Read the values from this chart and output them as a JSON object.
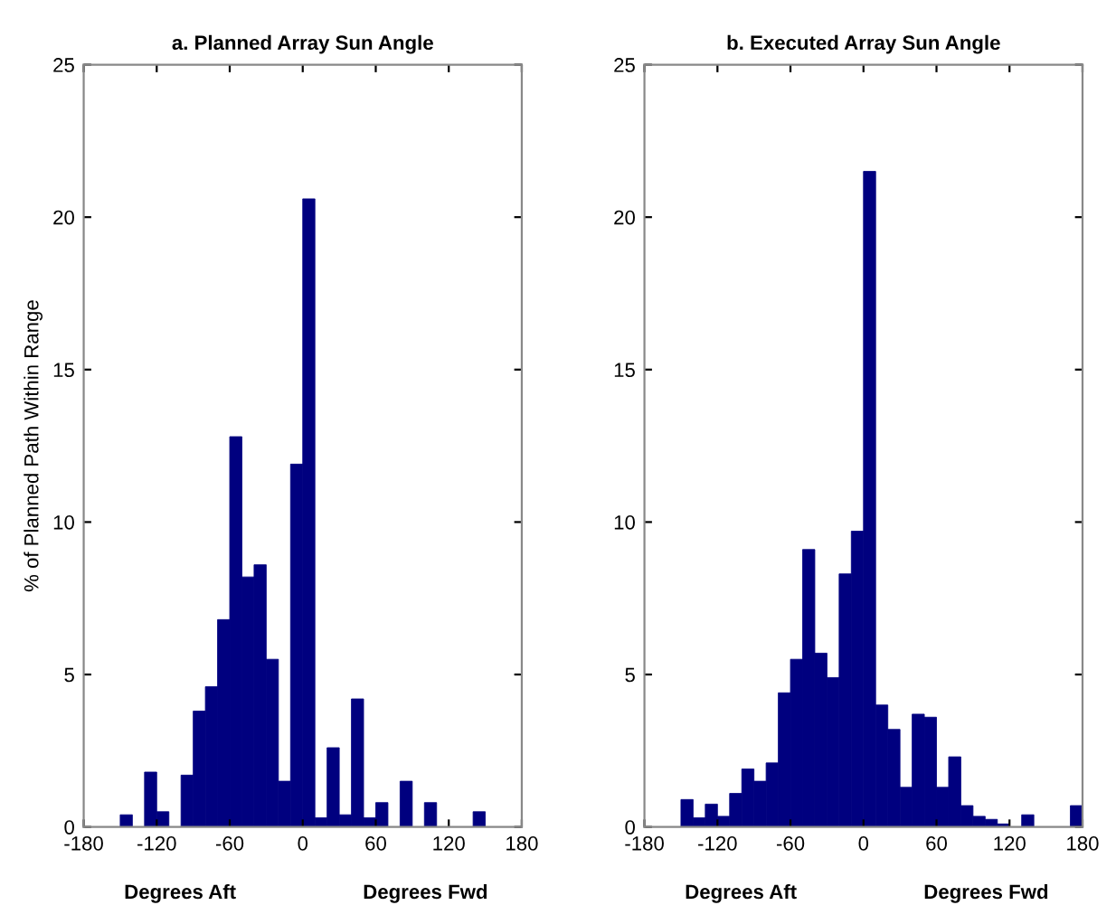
{
  "chart_data": [
    {
      "type": "histogram",
      "title": "a. Planned Array Sun Angle",
      "ylabel": "% of Planned Path Within Range",
      "annotations": [
        "Degrees Aft",
        "Degrees Fwd"
      ],
      "color": "#00007f",
      "bins": [
        -180,
        -170,
        -160,
        -150,
        -140,
        -130,
        -120,
        -110,
        -100,
        -90,
        -80,
        -70,
        -60,
        -50,
        -40,
        -30,
        -20,
        -10,
        0,
        10,
        20,
        30,
        40,
        50,
        60,
        70,
        80,
        90,
        100,
        110,
        120,
        130,
        140,
        150,
        160,
        170,
        180
      ],
      "values": [
        0,
        0,
        0,
        0.4,
        0,
        1.8,
        0.5,
        0,
        1.7,
        3.8,
        4.6,
        6.8,
        12.8,
        8.2,
        8.6,
        5.5,
        1.5,
        11.9,
        20.6,
        0.3,
        2.6,
        0.4,
        4.2,
        0.3,
        0.8,
        0,
        1.5,
        0,
        0.8,
        0,
        0,
        0,
        0.5,
        0,
        0,
        0
      ],
      "xlim": [
        -180,
        180
      ],
      "xticks": [
        -180,
        -120,
        -60,
        0,
        60,
        120,
        180
      ],
      "ylim": [
        0,
        25
      ],
      "yticks": [
        0,
        5,
        10,
        15,
        20,
        25
      ],
      "grid": false
    },
    {
      "type": "histogram",
      "title": "b. Executed Array Sun Angle",
      "annotations": [
        "Degrees Aft",
        "Degrees Fwd"
      ],
      "color": "#00007f",
      "bins": [
        -180,
        -170,
        -160,
        -150,
        -140,
        -130,
        -120,
        -110,
        -100,
        -90,
        -80,
        -70,
        -60,
        -50,
        -40,
        -30,
        -20,
        -10,
        0,
        10,
        20,
        30,
        40,
        50,
        60,
        70,
        80,
        90,
        100,
        110,
        120,
        130,
        140,
        150,
        160,
        170,
        180
      ],
      "values": [
        0,
        0,
        0,
        0.9,
        0.3,
        0.75,
        0.35,
        1.1,
        1.9,
        1.5,
        2.1,
        4.4,
        5.5,
        9.1,
        5.7,
        4.9,
        8.3,
        9.7,
        21.5,
        4.0,
        3.2,
        1.3,
        3.7,
        3.6,
        1.3,
        2.3,
        0.7,
        0.35,
        0.25,
        0.1,
        0,
        0.4,
        0,
        0,
        0,
        0.7
      ],
      "xlim": [
        -180,
        180
      ],
      "xticks": [
        -180,
        -120,
        -60,
        0,
        60,
        120,
        180
      ],
      "ylim": [
        0,
        25
      ],
      "yticks": [
        0,
        5,
        10,
        15,
        20,
        25
      ],
      "grid": false
    }
  ]
}
